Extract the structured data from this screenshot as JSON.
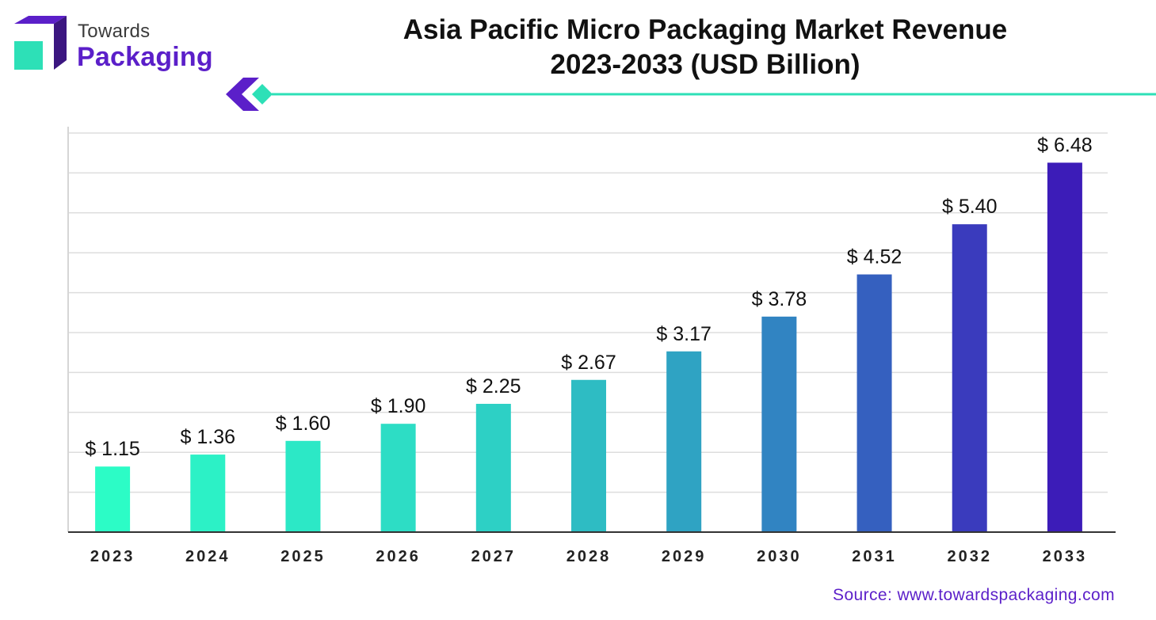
{
  "brand": {
    "name_top": "Towards",
    "name_bottom": "Packaging",
    "colors": {
      "purple": "#5b1fc9",
      "teal": "#2de0b7",
      "dark_purple": "#3b1680"
    }
  },
  "header": {
    "title_line1": "Asia Pacific Micro Packaging Market Revenue",
    "title_line2": "2023-2033 (USD Billion)"
  },
  "source": "Source: www.towardspackaging.com",
  "chart_data": {
    "type": "bar",
    "title": "Asia Pacific Micro Packaging Market Revenue 2023-2033 (USD Billion)",
    "xlabel": "",
    "ylabel": "",
    "categories": [
      "2023",
      "2024",
      "2025",
      "2026",
      "2027",
      "2028",
      "2029",
      "2030",
      "2031",
      "2032",
      "2033"
    ],
    "values": [
      1.15,
      1.36,
      1.6,
      1.9,
      2.25,
      2.67,
      3.17,
      3.78,
      4.52,
      5.4,
      6.48
    ],
    "value_labels": [
      "$ 1.15",
      "$ 1.36",
      "$ 1.60",
      "$ 1.90",
      "$ 2.25",
      "$ 2.67",
      "$ 3.17",
      "$ 3.78",
      "$ 4.52",
      "$ 5.40",
      "$ 6.48"
    ],
    "ylim": [
      0,
      7
    ],
    "grid": true,
    "legend": "none",
    "bar_colors": [
      "#2cfcc6",
      "#2cf1c6",
      "#2ce8c6",
      "#2dddc5",
      "#2dd0c5",
      "#2ebcc3",
      "#2fa3c3",
      "#3184c2",
      "#3560bf",
      "#3a3bbd",
      "#3c1cb8"
    ]
  }
}
